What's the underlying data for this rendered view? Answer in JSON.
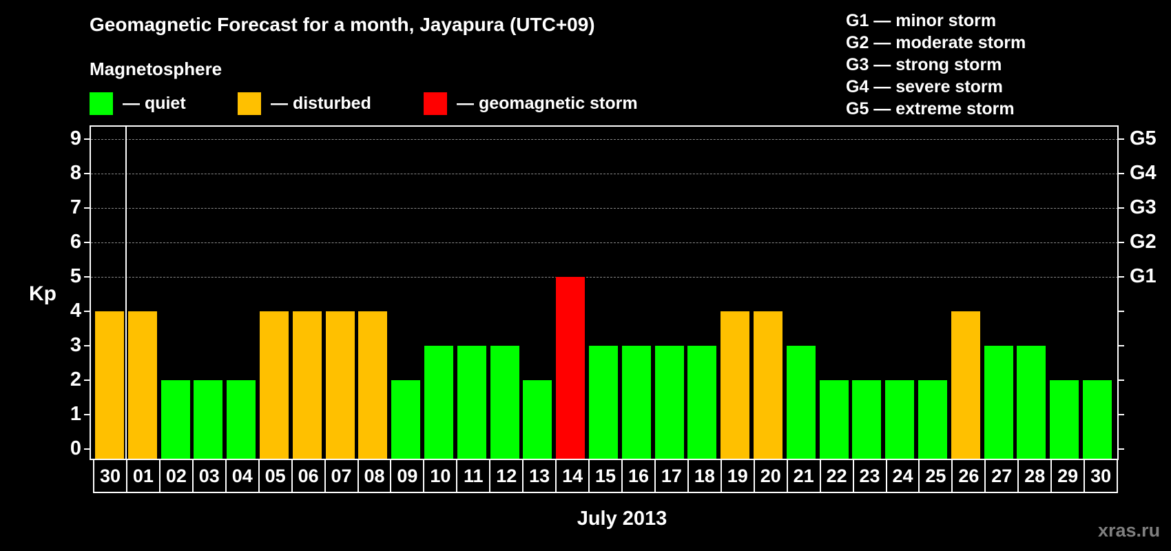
{
  "header": {
    "title": "Geomagnetic Forecast for a month, Jayapura (UTC+09)",
    "subtitle": "Magnetosphere"
  },
  "legend": [
    {
      "label": "— quiet",
      "color": "#00ff00"
    },
    {
      "label": "— disturbed",
      "color": "#ffc000"
    },
    {
      "label": "— geomagnetic storm",
      "color": "#ff0000"
    }
  ],
  "storm_scale": [
    "G1 — minor storm",
    "G2 — moderate storm",
    "G3 — strong storm",
    "G4 — severe storm",
    "G5 — extreme storm"
  ],
  "axes": {
    "y_label": "Kp",
    "y_ticks": [
      "0",
      "1",
      "2",
      "3",
      "4",
      "5",
      "6",
      "7",
      "8",
      "9"
    ],
    "g_ticks": [
      {
        "kp": 5,
        "label": "G1"
      },
      {
        "kp": 6,
        "label": "G2"
      },
      {
        "kp": 7,
        "label": "G3"
      },
      {
        "kp": 8,
        "label": "G4"
      },
      {
        "kp": 9,
        "label": "G5"
      }
    ],
    "x_label": "July 2013"
  },
  "watermark": "xras.ru",
  "colors": {
    "quiet": "#00ff00",
    "disturbed": "#ffc000",
    "storm": "#ff0000",
    "background": "#000000",
    "grid": "#8a8a8a"
  },
  "chart_data": {
    "type": "bar",
    "title": "Geomagnetic Forecast for a month, Jayapura (UTC+09)",
    "xlabel": "July 2013",
    "ylabel": "Kp",
    "ylim": [
      0,
      9
    ],
    "grid": "dashed horizontal at Kp 5-9",
    "legend_position": "top",
    "categories": [
      "30",
      "01",
      "02",
      "03",
      "04",
      "05",
      "06",
      "07",
      "08",
      "09",
      "10",
      "11",
      "12",
      "13",
      "14",
      "15",
      "16",
      "17",
      "18",
      "19",
      "20",
      "21",
      "22",
      "23",
      "24",
      "25",
      "26",
      "27",
      "28",
      "29",
      "30"
    ],
    "values": [
      4,
      4,
      2,
      2,
      2,
      4,
      4,
      4,
      4,
      2,
      3,
      3,
      3,
      2,
      5,
      3,
      3,
      3,
      3,
      4,
      4,
      3,
      2,
      2,
      2,
      2,
      4,
      3,
      3,
      2,
      2
    ],
    "status": [
      "disturbed",
      "disturbed",
      "quiet",
      "quiet",
      "quiet",
      "disturbed",
      "disturbed",
      "disturbed",
      "disturbed",
      "quiet",
      "quiet",
      "quiet",
      "quiet",
      "quiet",
      "storm",
      "quiet",
      "quiet",
      "quiet",
      "quiet",
      "disturbed",
      "disturbed",
      "quiet",
      "quiet",
      "quiet",
      "quiet",
      "quiet",
      "disturbed",
      "quiet",
      "quiet",
      "quiet",
      "quiet"
    ],
    "right_axis": {
      "5": "G1",
      "6": "G2",
      "7": "G3",
      "8": "G4",
      "9": "G5"
    }
  }
}
